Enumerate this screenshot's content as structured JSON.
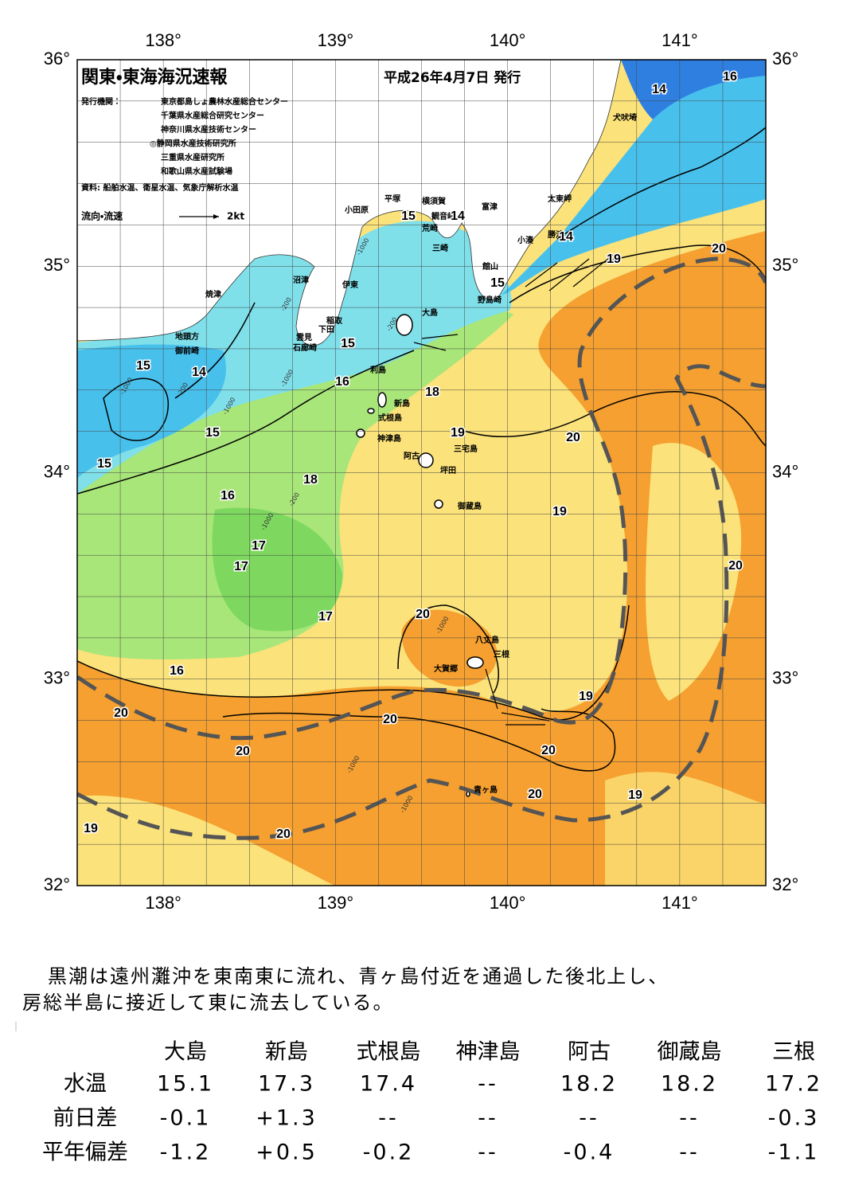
{
  "map": {
    "title": "関東・東海海況速報",
    "issued": "平成26年4月7日 発行",
    "publisher_label": "発行機関：",
    "publishers": [
      "東京都島しょ農林水産総合センター",
      "千葉県水産総合研究センター",
      "神奈川県水産技術センター",
      "◎静岡県水産技術研究所",
      "三重県水産研究所",
      "和歌山県水産試験場"
    ],
    "sources": "資料: 船舶水温、衛星水温、気象庁解析水温",
    "legend": {
      "label": "流向・流速",
      "scale": "2kt"
    },
    "lon_ticks": [
      {
        "value": 138,
        "label": "138°"
      },
      {
        "value": 139,
        "label": "139°"
      },
      {
        "value": 140,
        "label": "140°"
      },
      {
        "value": 141,
        "label": "141°"
      }
    ],
    "lat_ticks": [
      {
        "value": 36,
        "label": "36°"
      },
      {
        "value": 35,
        "label": "35°"
      },
      {
        "value": 34,
        "label": "34°"
      },
      {
        "value": 33,
        "label": "33°"
      },
      {
        "value": 32,
        "label": "32°"
      }
    ],
    "lonlim": [
      137.5,
      141.5
    ],
    "latlim": [
      32,
      36
    ],
    "place_names": [
      "大島",
      "犬吠埼",
      "太東岬",
      "勝浦",
      "小湊",
      "富津",
      "横須賀",
      "観音崎",
      "荒崎",
      "平塚",
      "小田原",
      "三崎",
      "館山",
      "野島崎",
      "沼津",
      "伊東",
      "稲取",
      "下田",
      "雲見",
      "石廊崎",
      "焼津",
      "地頭方",
      "御前崎",
      "利島",
      "新島",
      "式根島",
      "神津島",
      "三宅島",
      "阿古",
      "坪田",
      "御蔵島",
      "八丈島",
      "三根",
      "大賀郷",
      "青ヶ島"
    ],
    "isotherm_labels": [
      14,
      16,
      15,
      14,
      14,
      19,
      20,
      15,
      15,
      15,
      14,
      16,
      18,
      19,
      20,
      15,
      15,
      18,
      16,
      19,
      17,
      17,
      20,
      20,
      17,
      16,
      19,
      20,
      20,
      20,
      20,
      20,
      19,
      19,
      20
    ],
    "depth_labels": [
      "-1000",
      "-200",
      "-1000",
      "-200",
      "-1000",
      "-200",
      "-1000",
      "-1000",
      "-200",
      "-1000",
      "-1000",
      "-1000"
    ]
  },
  "description": [
    "黒潮は遠州灘沖を東南東に流れ、青ヶ島付近を通過した後北上し、",
    "房総半島に接近して東に流去している。"
  ],
  "table": {
    "columns": [
      "大島",
      "新島",
      "式根島",
      "神津島",
      "阿古",
      "御蔵島",
      "三根"
    ],
    "rows": [
      {
        "label": "水温",
        "cells": [
          "15.1",
          "17.3",
          "17.4",
          "--",
          "18.2",
          "18.2",
          "17.2"
        ]
      },
      {
        "label": "前日差",
        "cells": [
          "-0.1",
          "+1.3",
          "--",
          "--",
          "--",
          "--",
          "-0.3"
        ]
      },
      {
        "label": "平年偏差",
        "cells": [
          "-1.2",
          "+0.5",
          "-0.2",
          "--",
          "-0.4",
          "--",
          "-1.1"
        ]
      }
    ]
  }
}
